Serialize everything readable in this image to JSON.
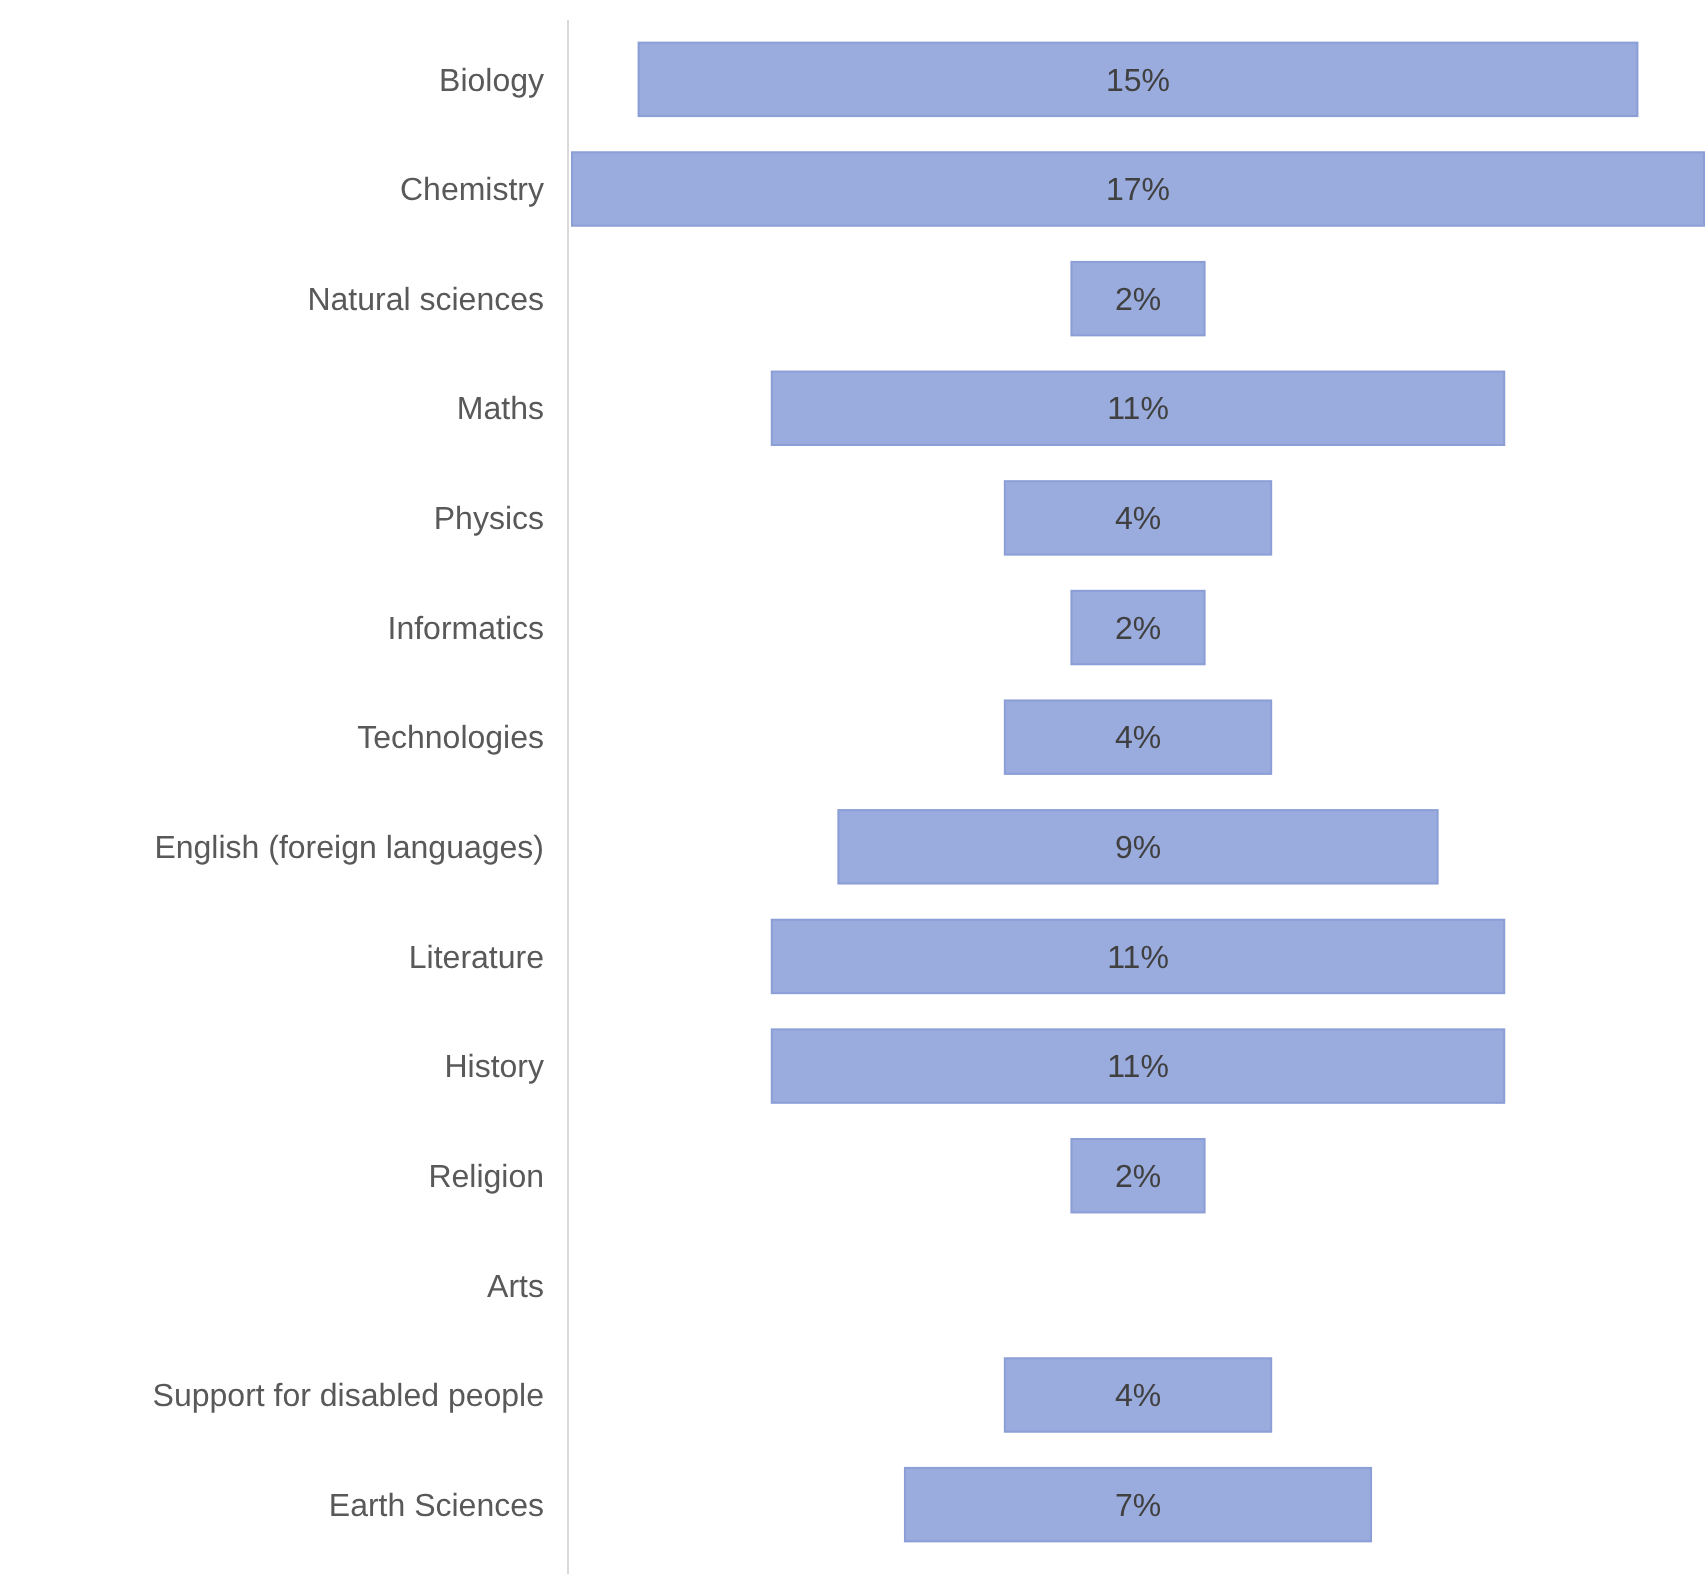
{
  "chart_data": {
    "type": "other",
    "categories": [
      "Biology",
      "Chemistry",
      "Natural sciences",
      "Maths",
      "Physics",
      "Informatics",
      "Technologies",
      "English (foreign languages)",
      "Literature",
      "History",
      "Religion",
      "Arts",
      "Support for disabled people",
      "Earth Sciences"
    ],
    "values": [
      15,
      17,
      2,
      11,
      4,
      2,
      4,
      9,
      11,
      11,
      2,
      null,
      4,
      7
    ],
    "value_labels": [
      "15%",
      "17%",
      "2%",
      "11%",
      "4%",
      "2%",
      "4%",
      "9%",
      "11%",
      "11%",
      "2%",
      null,
      "4%",
      "7%"
    ],
    "color": "#9aabdd"
  }
}
